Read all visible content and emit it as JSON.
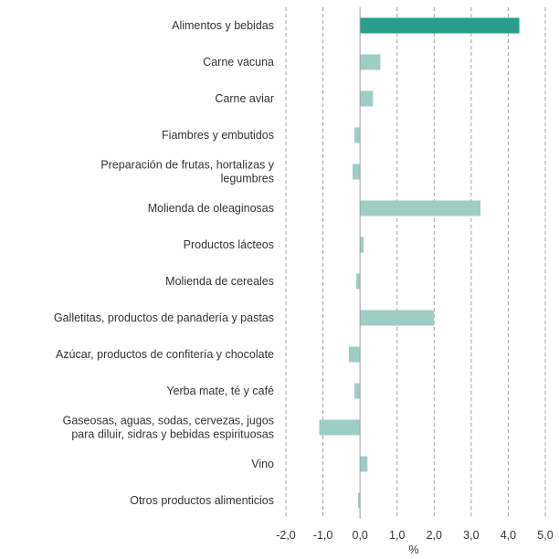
{
  "chart_data": {
    "type": "bar",
    "orientation": "horizontal",
    "categories": [
      [
        "Alimentos y bebidas"
      ],
      [
        "Carne vacuna"
      ],
      [
        "Carne aviar"
      ],
      [
        "Fiambres y embutidos"
      ],
      [
        "Preparación de frutas, hortalizas y",
        "legumbres"
      ],
      [
        "Molienda de oleaginosas"
      ],
      [
        "Productos lácteos"
      ],
      [
        "Molienda de cereales"
      ],
      [
        "Galletitas, productos de panadería y pastas"
      ],
      [
        "Azúcar, productos de confitería y chocolate"
      ],
      [
        "Yerba mate, té y café"
      ],
      [
        "Gaseosas, aguas, sodas, cervezas, jugos",
        "para diluir, sidras y bebidas espirituosas"
      ],
      [
        "Vino"
      ],
      [
        "Otros productos alimenticios"
      ]
    ],
    "values": [
      4.3,
      0.55,
      0.35,
      -0.15,
      -0.2,
      3.25,
      0.1,
      -0.1,
      2.0,
      -0.3,
      -0.15,
      -1.1,
      0.2,
      -0.05
    ],
    "highlight_index": 0,
    "colors": {
      "highlight": "#2a9d8f",
      "default": "#9ecdc6",
      "grid": "#a0a0a0",
      "axis": "#a0a0a0"
    },
    "xlim": [
      -2.0,
      5.0
    ],
    "xticks": [
      -2.0,
      -1.0,
      0.0,
      1.0,
      2.0,
      3.0,
      4.0,
      5.0
    ],
    "xtick_labels": [
      "-2,0",
      "-1,0",
      "0,0",
      "1,0",
      "2,0",
      "3,0",
      "4,0",
      "5,0"
    ],
    "xlabel": "%",
    "grid": "vertical-dashed"
  }
}
